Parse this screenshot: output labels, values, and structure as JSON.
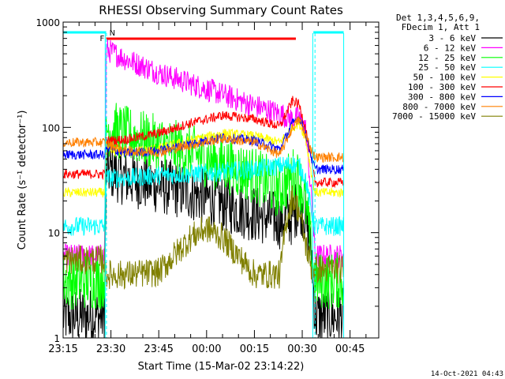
{
  "chart_data": {
    "type": "line",
    "title": "RHESSI Observing Summary Count Rates",
    "xlabel": "Start Time (15-Mar-02 23:14:22)",
    "ylabel": "Count Rate (s⁻¹ detector⁻¹)",
    "y_scale": "log",
    "ylim": [
      1,
      1000
    ],
    "xlim_minutes_after_2315": [
      0,
      99
    ],
    "x_tick_labels": [
      "23:15",
      "23:30",
      "23:45",
      "00:00",
      "00:15",
      "00:30",
      "00:45"
    ],
    "y_tick_labels": [
      "1",
      "10",
      "100",
      "1000"
    ],
    "legend_header": [
      "Det 1,3,4,5,6,9,",
      "FDecim 1, Att 1"
    ],
    "legend_position": "right",
    "footer_timestamp": "14-Oct-2021 04:43",
    "flags": [
      {
        "label": "N",
        "color": "#00ffff"
      },
      {
        "label": "F",
        "color": "#ff0000"
      }
    ],
    "series": [
      {
        "name": "3 - 6 keV",
        "color": "#000000",
        "noise": 0.12,
        "points": [
          [
            0,
            1.6
          ],
          [
            13,
            1.6
          ],
          [
            13.5,
            40
          ],
          [
            20,
            33
          ],
          [
            30,
            28
          ],
          [
            40,
            24
          ],
          [
            50,
            19
          ],
          [
            60,
            15
          ],
          [
            68,
            13
          ],
          [
            72,
            14
          ],
          [
            74,
            20
          ],
          [
            76,
            14
          ],
          [
            78,
            6
          ],
          [
            79,
            1.6
          ],
          [
            85,
            1.6
          ],
          [
            88,
            1.6
          ]
        ]
      },
      {
        "name": "6 - 12 keV",
        "color": "#ff00ff",
        "noise": 0.05,
        "points": [
          [
            0,
            6
          ],
          [
            13,
            6
          ],
          [
            13.5,
            550
          ],
          [
            20,
            440
          ],
          [
            30,
            330
          ],
          [
            40,
            260
          ],
          [
            50,
            205
          ],
          [
            60,
            160
          ],
          [
            68,
            135
          ],
          [
            72,
            120
          ],
          [
            74,
            125
          ],
          [
            76,
            100
          ],
          [
            78,
            20
          ],
          [
            79,
            6
          ],
          [
            85,
            6
          ],
          [
            88,
            6
          ]
        ]
      },
      {
        "name": "12 - 25 keV",
        "color": "#00ff00",
        "noise": 0.12,
        "points": [
          [
            0,
            3.5
          ],
          [
            13,
            3.5
          ],
          [
            13.5,
            100
          ],
          [
            20,
            85
          ],
          [
            30,
            70
          ],
          [
            40,
            57
          ],
          [
            50,
            45
          ],
          [
            60,
            35
          ],
          [
            68,
            25
          ],
          [
            72,
            35
          ],
          [
            74,
            32
          ],
          [
            76,
            20
          ],
          [
            78,
            6
          ],
          [
            79,
            3.5
          ],
          [
            85,
            3.5
          ],
          [
            88,
            3.5
          ]
        ]
      },
      {
        "name": "25 - 50 keV",
        "color": "#00ffff",
        "noise": 0.04,
        "points": [
          [
            0,
            11.5
          ],
          [
            13,
            11.5
          ],
          [
            13.5,
            33
          ],
          [
            20,
            33
          ],
          [
            30,
            35
          ],
          [
            40,
            36
          ],
          [
            50,
            38
          ],
          [
            60,
            40
          ],
          [
            68,
            43
          ],
          [
            72,
            45
          ],
          [
            74,
            43
          ],
          [
            76,
            33
          ],
          [
            78,
            15
          ],
          [
            79,
            11.5
          ],
          [
            85,
            11.5
          ],
          [
            88,
            11.5
          ]
        ]
      },
      {
        "name": "50 - 100 keV",
        "color": "#ffff00",
        "noise": 0.02,
        "points": [
          [
            0,
            24
          ],
          [
            13,
            24
          ],
          [
            13.5,
            60
          ],
          [
            20,
            58
          ],
          [
            30,
            63
          ],
          [
            40,
            75
          ],
          [
            50,
            88
          ],
          [
            60,
            83
          ],
          [
            68,
            72
          ],
          [
            72,
            100
          ],
          [
            74,
            110
          ],
          [
            76,
            80
          ],
          [
            78,
            35
          ],
          [
            79,
            24
          ],
          [
            85,
            24
          ],
          [
            88,
            24
          ]
        ]
      },
      {
        "name": "100 - 300 keV",
        "color": "#ff0000",
        "noise": 0.02,
        "points": [
          [
            0,
            36
          ],
          [
            13,
            36
          ],
          [
            13.5,
            75
          ],
          [
            20,
            77
          ],
          [
            30,
            88
          ],
          [
            40,
            110
          ],
          [
            50,
            130
          ],
          [
            60,
            120
          ],
          [
            68,
            102
          ],
          [
            72,
            180
          ],
          [
            74,
            165
          ],
          [
            76,
            100
          ],
          [
            78,
            45
          ],
          [
            79,
            30
          ],
          [
            85,
            30
          ],
          [
            88,
            30
          ]
        ]
      },
      {
        "name": "300 - 800 keV",
        "color": "#0000ff",
        "noise": 0.02,
        "points": [
          [
            0,
            55
          ],
          [
            13,
            55
          ],
          [
            13.5,
            63
          ],
          [
            20,
            57
          ],
          [
            30,
            60
          ],
          [
            40,
            70
          ],
          [
            50,
            80
          ],
          [
            60,
            75
          ],
          [
            68,
            62
          ],
          [
            72,
            110
          ],
          [
            74,
            125
          ],
          [
            76,
            90
          ],
          [
            78,
            50
          ],
          [
            79,
            40
          ],
          [
            85,
            40
          ],
          [
            88,
            40
          ]
        ]
      },
      {
        "name": "800 - 7000 keV",
        "color": "#ff8000",
        "noise": 0.02,
        "points": [
          [
            0,
            72
          ],
          [
            13,
            72
          ],
          [
            13.5,
            70
          ],
          [
            20,
            60
          ],
          [
            30,
            58
          ],
          [
            40,
            68
          ],
          [
            50,
            78
          ],
          [
            60,
            72
          ],
          [
            68,
            55
          ],
          [
            72,
            100
          ],
          [
            74,
            120
          ],
          [
            76,
            85
          ],
          [
            78,
            60
          ],
          [
            79,
            52
          ],
          [
            85,
            52
          ],
          [
            88,
            52
          ]
        ]
      },
      {
        "name": "7000 - 15000 keV",
        "color": "#808000",
        "noise": 0.06,
        "points": [
          [
            0,
            5.5
          ],
          [
            13,
            5.5
          ],
          [
            13.5,
            4
          ],
          [
            20,
            4
          ],
          [
            30,
            4.2
          ],
          [
            40,
            9
          ],
          [
            45,
            11
          ],
          [
            50,
            9
          ],
          [
            55,
            6
          ],
          [
            60,
            4
          ],
          [
            68,
            4
          ],
          [
            70,
            13
          ],
          [
            72,
            22
          ],
          [
            74,
            16
          ],
          [
            76,
            8
          ],
          [
            78,
            4.5
          ],
          [
            85,
            4.5
          ],
          [
            88,
            4.5
          ]
        ]
      }
    ]
  }
}
